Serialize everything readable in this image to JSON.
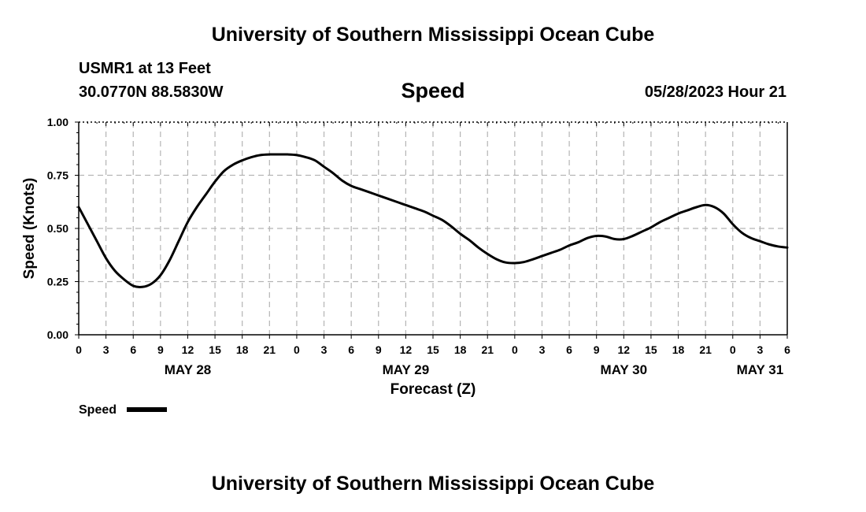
{
  "page": {
    "title_top": "University of Southern Mississippi Ocean Cube",
    "title_bottom": "University of Southern Mississippi Ocean Cube",
    "station": "USMR1 at 13 Feet",
    "coords": "30.0770N  88.5830W",
    "variable": "Speed",
    "datetime": "05/28/2023 Hour 21"
  },
  "colors": {
    "line": "#000000",
    "grid": "#b4b4b4",
    "background": "#ffffff"
  },
  "chart_data": {
    "type": "line",
    "title": "Speed",
    "xlabel": "Forecast (Z)",
    "ylabel": "Speed (Knots)",
    "ylim": [
      0,
      1
    ],
    "xlim_hours": [
      0,
      78
    ],
    "grid": true,
    "legend": {
      "position": "bottom-left",
      "entries": [
        "Speed"
      ]
    },
    "x_ticks": [
      {
        "hour": 0,
        "label": "0"
      },
      {
        "hour": 3,
        "label": "3"
      },
      {
        "hour": 6,
        "label": "6"
      },
      {
        "hour": 9,
        "label": "9"
      },
      {
        "hour": 12,
        "label": "12"
      },
      {
        "hour": 15,
        "label": "15"
      },
      {
        "hour": 18,
        "label": "18"
      },
      {
        "hour": 21,
        "label": "21"
      },
      {
        "hour": 24,
        "label": "0"
      },
      {
        "hour": 27,
        "label": "3"
      },
      {
        "hour": 30,
        "label": "6"
      },
      {
        "hour": 33,
        "label": "9"
      },
      {
        "hour": 36,
        "label": "12"
      },
      {
        "hour": 39,
        "label": "15"
      },
      {
        "hour": 42,
        "label": "18"
      },
      {
        "hour": 45,
        "label": "21"
      },
      {
        "hour": 48,
        "label": "0"
      },
      {
        "hour": 51,
        "label": "3"
      },
      {
        "hour": 54,
        "label": "6"
      },
      {
        "hour": 57,
        "label": "9"
      },
      {
        "hour": 60,
        "label": "12"
      },
      {
        "hour": 63,
        "label": "15"
      },
      {
        "hour": 66,
        "label": "18"
      },
      {
        "hour": 69,
        "label": "21"
      },
      {
        "hour": 72,
        "label": "0"
      },
      {
        "hour": 75,
        "label": "3"
      },
      {
        "hour": 78,
        "label": "6"
      }
    ],
    "y_ticks": [
      {
        "value": 0,
        "label": "0.00"
      },
      {
        "value": 0.25,
        "label": "0.25"
      },
      {
        "value": 0.5,
        "label": "0.50"
      },
      {
        "value": 0.75,
        "label": "0.75"
      },
      {
        "value": 1,
        "label": "1.00"
      }
    ],
    "date_labels": [
      {
        "hour": 12,
        "label": "MAY 28"
      },
      {
        "hour": 36,
        "label": "MAY 29"
      },
      {
        "hour": 60,
        "label": "MAY 30"
      },
      {
        "hour": 75,
        "label": "MAY 31"
      }
    ],
    "series": [
      {
        "name": "Speed",
        "points": [
          [
            0,
            0.6
          ],
          [
            1,
            0.52
          ],
          [
            2,
            0.44
          ],
          [
            3,
            0.36
          ],
          [
            4,
            0.3
          ],
          [
            5,
            0.26
          ],
          [
            6,
            0.23
          ],
          [
            7,
            0.225
          ],
          [
            8,
            0.24
          ],
          [
            9,
            0.28
          ],
          [
            10,
            0.35
          ],
          [
            11,
            0.44
          ],
          [
            12,
            0.53
          ],
          [
            13,
            0.6
          ],
          [
            14,
            0.66
          ],
          [
            15,
            0.72
          ],
          [
            16,
            0.77
          ],
          [
            17,
            0.8
          ],
          [
            18,
            0.82
          ],
          [
            19,
            0.835
          ],
          [
            20,
            0.845
          ],
          [
            21,
            0.848
          ],
          [
            22,
            0.848
          ],
          [
            23,
            0.848
          ],
          [
            24,
            0.845
          ],
          [
            25,
            0.835
          ],
          [
            26,
            0.82
          ],
          [
            27,
            0.79
          ],
          [
            28,
            0.76
          ],
          [
            29,
            0.725
          ],
          [
            30,
            0.7
          ],
          [
            31,
            0.685
          ],
          [
            32,
            0.67
          ],
          [
            33,
            0.655
          ],
          [
            34,
            0.64
          ],
          [
            35,
            0.625
          ],
          [
            36,
            0.61
          ],
          [
            37,
            0.595
          ],
          [
            38,
            0.58
          ],
          [
            39,
            0.56
          ],
          [
            40,
            0.54
          ],
          [
            41,
            0.51
          ],
          [
            42,
            0.475
          ],
          [
            43,
            0.445
          ],
          [
            44,
            0.41
          ],
          [
            45,
            0.38
          ],
          [
            46,
            0.355
          ],
          [
            47,
            0.34
          ],
          [
            48,
            0.337
          ],
          [
            49,
            0.342
          ],
          [
            50,
            0.355
          ],
          [
            51,
            0.37
          ],
          [
            52,
            0.385
          ],
          [
            53,
            0.4
          ],
          [
            54,
            0.42
          ],
          [
            55,
            0.435
          ],
          [
            56,
            0.455
          ],
          [
            57,
            0.465
          ],
          [
            58,
            0.462
          ],
          [
            59,
            0.45
          ],
          [
            60,
            0.45
          ],
          [
            61,
            0.465
          ],
          [
            62,
            0.485
          ],
          [
            63,
            0.505
          ],
          [
            64,
            0.53
          ],
          [
            65,
            0.55
          ],
          [
            66,
            0.57
          ],
          [
            67,
            0.585
          ],
          [
            68,
            0.6
          ],
          [
            69,
            0.61
          ],
          [
            70,
            0.6
          ],
          [
            71,
            0.57
          ],
          [
            72,
            0.52
          ],
          [
            73,
            0.48
          ],
          [
            74,
            0.455
          ],
          [
            75,
            0.44
          ],
          [
            76,
            0.425
          ],
          [
            77,
            0.415
          ],
          [
            78,
            0.41
          ]
        ]
      }
    ]
  }
}
